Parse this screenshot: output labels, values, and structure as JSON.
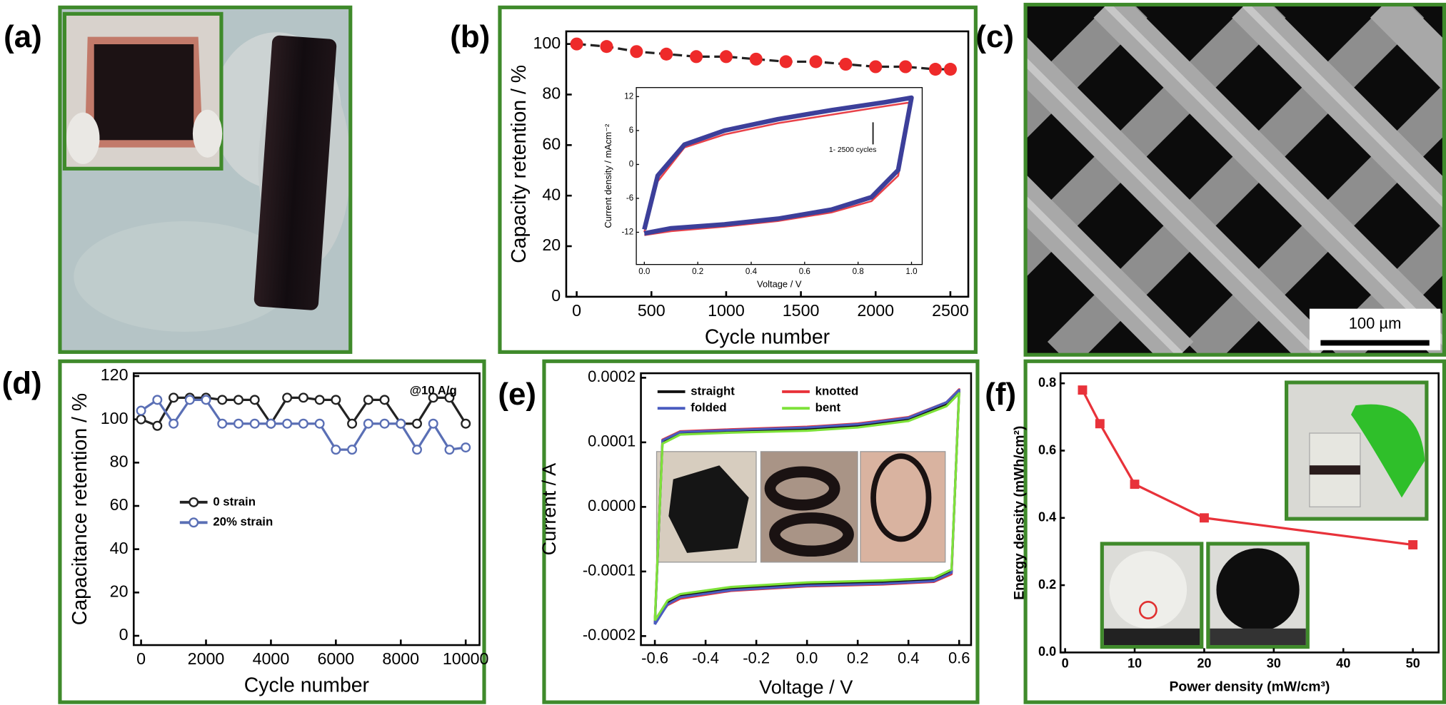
{
  "chart_data": [
    {
      "type": "image",
      "panel_label": "(a)"
    },
    {
      "type": "line",
      "panel_label": "(b)",
      "x": [
        0,
        200,
        400,
        600,
        800,
        1000,
        1200,
        1400,
        1600,
        1800,
        2000,
        2200,
        2400,
        2500
      ],
      "series": [
        {
          "color": "#ee2a2a",
          "line_color": "#222222",
          "line_style": "dashed",
          "values": [
            100,
            99,
            97,
            96,
            95,
            95,
            94,
            93,
            93,
            92,
            91,
            91,
            90,
            90
          ]
        }
      ],
      "marker": "circle",
      "xlabel": "Cycle number",
      "ylabel": "Capacity retention / %",
      "xlim": [
        -70,
        2620
      ],
      "ylim": [
        0,
        105
      ],
      "xticks": [
        0,
        500,
        1000,
        1500,
        2000,
        2500
      ],
      "yticks": [
        0,
        20,
        40,
        60,
        80,
        100
      ],
      "inset": {
        "type": "line",
        "xlabel": "Voltage / V",
        "ylabel": "Current density / mAcm⁻²",
        "annotation": "1- 2500 cycles",
        "xlim": [
          -0.03,
          1.04
        ],
        "ylim": [
          -17.7,
          13.6
        ],
        "xticks": [
          {
            "value": 0,
            "label": "0.0"
          },
          0.2,
          0.4,
          0.6,
          0.8,
          {
            "value": 1,
            "label": "1.0"
          }
        ],
        "yticks": [
          -12,
          -6,
          0,
          6,
          12
        ],
        "series": [
          {
            "color": "#e8424a",
            "width": 2,
            "x": [
              0,
              0.1,
              0.3,
              0.5,
              0.7,
              0.85,
              0.95,
              1.0,
              0.9,
              0.7,
              0.5,
              0.3,
              0.15,
              0.05,
              0
            ],
            "values": [
              -12.5,
              -11.8,
              -11,
              -10,
              -8.5,
              -6.5,
              -2,
              11,
              10.3,
              8.8,
              7.3,
              5.3,
              3,
              -3,
              -12
            ]
          },
          {
            "color": "#3c3f9a",
            "width": 5,
            "x": [
              0,
              0.1,
              0.3,
              0.5,
              0.7,
              0.85,
              0.95,
              1.0,
              0.9,
              0.7,
              0.5,
              0.3,
              0.15,
              0.05,
              0
            ],
            "values": [
              -12.2,
              -11.3,
              -10.6,
              -9.6,
              -8,
              -5.8,
              -1,
              11.8,
              11,
              9.6,
              8,
              6,
              3.5,
              -2,
              -11.5
            ]
          }
        ]
      }
    },
    {
      "type": "image",
      "panel_label": "(c)",
      "scale_bar": "100 µm"
    },
    {
      "type": "line",
      "panel_label": "(d)",
      "x": [
        0,
        500,
        1000,
        1500,
        2000,
        2500,
        3000,
        3500,
        4000,
        4500,
        5000,
        5500,
        6000,
        6500,
        7000,
        7500,
        8000,
        8500,
        9000,
        9500,
        10000
      ],
      "series": [
        {
          "name": "0 strain",
          "color": "#222222",
          "values": [
            100,
            97,
            110,
            110,
            110,
            109,
            109,
            109,
            98,
            110,
            110,
            109,
            109,
            98,
            109,
            109,
            98,
            98,
            110,
            110,
            98
          ]
        },
        {
          "name": "20% strain",
          "color": "#5a6fb5",
          "values": [
            104,
            109,
            98,
            109,
            109,
            98,
            98,
            98,
            98,
            98,
            98,
            98,
            86,
            86,
            98,
            98,
            98,
            86,
            98,
            86,
            87
          ]
        }
      ],
      "marker": "hollow-circle",
      "annotation": "@10 A/g",
      "xlabel": "Cycle number",
      "ylabel": "Capacitance retention / %",
      "xlim": [
        -227,
        10426
      ],
      "ylim": [
        -4.3,
        121.3
      ],
      "xticks": [
        0,
        2000,
        4000,
        6000,
        8000,
        10000
      ],
      "yticks": [
        0,
        20,
        40,
        60,
        80,
        100,
        120
      ]
    },
    {
      "type": "line",
      "panel_label": "(e)",
      "series": [
        {
          "name": "straight",
          "color": "#111111",
          "x": [
            -0.6,
            -0.55,
            -0.5,
            -0.3,
            0,
            0.3,
            0.5,
            0.57,
            0.6,
            0.55,
            0.4,
            0.2,
            0,
            -0.3,
            -0.5,
            -0.57,
            -0.6
          ],
          "values": [
            -0.00018,
            -0.000148,
            -0.000138,
            -0.000127,
            -0.00012,
            -0.000117,
            -0.000113,
            -0.0001,
            0.000178,
            0.000158,
            0.000135,
            0.000125,
            0.00012,
            0.000116,
            0.000113,
            0.0001,
            -0.00018
          ]
        },
        {
          "name": "knotted",
          "color": "#e8323a",
          "x": [
            -0.6,
            -0.55,
            -0.5,
            -0.3,
            0,
            0.3,
            0.5,
            0.57,
            0.6,
            0.55,
            0.4,
            0.2,
            0,
            -0.3,
            -0.5,
            -0.57,
            -0.6
          ],
          "values": [
            -0.000178,
            -0.000152,
            -0.000142,
            -0.00013,
            -0.000123,
            -0.00012,
            -0.000116,
            -0.000104,
            0.000182,
            0.000162,
            0.000139,
            0.000129,
            0.000124,
            0.00012,
            0.000117,
            0.000104,
            -0.000178
          ]
        },
        {
          "name": "folded",
          "color": "#4a5cc0",
          "x": [
            -0.6,
            -0.55,
            -0.5,
            -0.3,
            0,
            0.3,
            0.5,
            0.57,
            0.6,
            0.55,
            0.4,
            0.2,
            0,
            -0.3,
            -0.5,
            -0.57,
            -0.6
          ],
          "values": [
            -0.000182,
            -0.000151,
            -0.00014,
            -0.000129,
            -0.000122,
            -0.000119,
            -0.000115,
            -0.000102,
            0.000181,
            0.000162,
            0.000138,
            0.000128,
            0.000123,
            0.000119,
            0.000116,
            0.000103,
            -0.000182
          ]
        },
        {
          "name": "bent",
          "color": "#7ee23a",
          "x": [
            -0.6,
            -0.55,
            -0.5,
            -0.3,
            0,
            0.3,
            0.5,
            0.57,
            0.6,
            0.55,
            0.4,
            0.2,
            0,
            -0.3,
            -0.5,
            -0.57,
            -0.6
          ],
          "values": [
            -0.000176,
            -0.000145,
            -0.000135,
            -0.000124,
            -0.000117,
            -0.000114,
            -0.00011,
            -9.7e-05,
            0.000176,
            0.000156,
            0.000133,
            0.000123,
            0.000118,
            0.000115,
            0.000112,
            9.8e-05,
            -0.000176
          ]
        }
      ],
      "xlabel": "Voltage / V",
      "ylabel": "Current / A",
      "xlim": [
        -0.655,
        0.647
      ],
      "ylim": [
        -0.000214,
        0.000207
      ],
      "xticks": [
        -0.6,
        -0.4,
        -0.2,
        {
          "value": 0,
          "label": "0.0"
        },
        0.2,
        0.4,
        0.6
      ],
      "yticks": [
        -0.0002,
        -0.0001,
        {
          "value": 0,
          "label": "0.0000"
        },
        0.0001,
        0.0002
      ]
    },
    {
      "type": "line",
      "panel_label": "(f)",
      "x": [
        2.5,
        5,
        10,
        20,
        50
      ],
      "series": [
        {
          "color": "#e8323a",
          "values": [
            0.78,
            0.68,
            0.5,
            0.4,
            0.32
          ]
        }
      ],
      "marker": "square",
      "xlabel": "Power density (mW/cm³)",
      "ylabel": "Energy density (mWh/cm²)",
      "xlim": [
        -0.66,
        53.7
      ],
      "ylim": [
        0,
        0.83
      ],
      "xticks": [
        0,
        10,
        20,
        30,
        40,
        50
      ],
      "yticks": [
        {
          "value": 0,
          "label": "0.0"
        },
        0.2,
        0.4,
        0.6,
        0.8
      ]
    }
  ]
}
